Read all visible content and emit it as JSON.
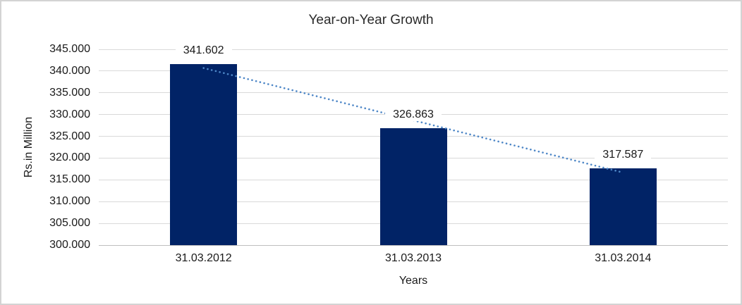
{
  "frame": {
    "border_color": "#d3d3d3",
    "background_color": "#ffffff"
  },
  "chart_data": {
    "type": "bar",
    "title": "Year-on-Year Growth",
    "xlabel": "Years",
    "ylabel": "Rs.in Million",
    "categories": [
      "31.03.2012",
      "31.03.2013",
      "31.03.2014"
    ],
    "values": [
      341.602,
      326.863,
      317.587
    ],
    "data_labels": [
      "341.602",
      "326.863",
      "317.587"
    ],
    "ylim": [
      300,
      345
    ],
    "y_tick_step": 5,
    "y_tick_labels": [
      "345.000",
      "340.000",
      "335.000",
      "330.000",
      "325.000",
      "320.000",
      "315.000",
      "310.000",
      "305.000",
      "300.000"
    ],
    "grid": true,
    "legend": "none",
    "bar_color": "#012366",
    "trendline": {
      "type": "linear",
      "style": "dotted",
      "color": "#4e87c7"
    },
    "gridline_color": "#d9d9d9",
    "axis_line_color": "#bfbfbf",
    "text_color": "#1a1a1a"
  }
}
